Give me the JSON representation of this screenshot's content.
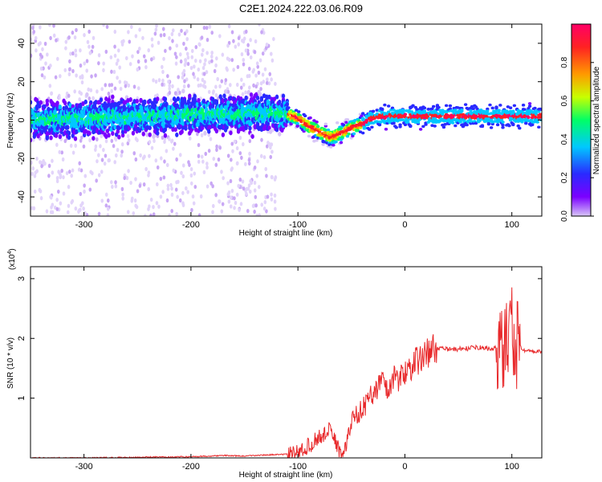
{
  "title": "C2E1.2024.222.03.06.R09",
  "chart_data": [
    {
      "type": "heatmap",
      "xlabel": "Height of straight line (km)",
      "ylabel": "Frequency (Hz)",
      "xlim": [
        -350,
        128
      ],
      "ylim": [
        -50,
        50
      ],
      "xticks": [
        -300,
        -200,
        -100,
        0,
        100
      ],
      "yticks": [
        -40,
        -20,
        0,
        20,
        40
      ],
      "colorbar": {
        "label": "Normalized spectral amplitude",
        "range": [
          0.0,
          1.0
        ],
        "ticks": [
          0.0,
          0.2,
          0.4,
          0.6,
          0.8
        ],
        "colormap": [
          "#d8c6f7",
          "#7b00ff",
          "#2a2aff",
          "#00c8ff",
          "#00ff66",
          "#c8ff00",
          "#ff9900",
          "#ff2222",
          "#ff0066"
        ]
      },
      "ridge": {
        "x": [
          -350,
          -300,
          -250,
          -200,
          -150,
          -125,
          -110,
          -100,
          -90,
          -80,
          -70,
          -60,
          -50,
          -40,
          -30,
          -20,
          0,
          50,
          100,
          128
        ],
        "y": [
          0,
          1,
          2,
          3,
          3,
          4,
          3,
          1,
          -3,
          -6,
          -9,
          -7,
          -4,
          -2,
          1,
          2,
          2,
          2,
          2,
          2
        ]
      }
    },
    {
      "type": "line",
      "xlabel": "Height of straight line (km)",
      "ylabel": "SNR (10 * v/v)",
      "yscale_label": "(x10",
      "yscale_exp": "4",
      "xlim": [
        -350,
        128
      ],
      "ylim": [
        0,
        3.2
      ],
      "xticks": [
        -300,
        -200,
        -100,
        0,
        100
      ],
      "yticks": [
        1,
        2,
        3
      ],
      "color": "#e8282a",
      "series": [
        {
          "x": [
            -350,
            -300,
            -250,
            -200,
            -170,
            -150,
            -130,
            -110,
            -100,
            -90,
            -80,
            -70,
            -65,
            -60,
            -55,
            -50,
            -45,
            -40,
            -35,
            -30,
            -25,
            -20,
            -15,
            -10,
            -5,
            0,
            10,
            20,
            30,
            35,
            50,
            70,
            80,
            90,
            95,
            100,
            103,
            105,
            110,
            128
          ],
          "y": [
            0.0,
            0.0,
            0.01,
            0.02,
            0.04,
            0.03,
            0.05,
            0.06,
            0.1,
            0.2,
            0.35,
            0.45,
            0.3,
            0.05,
            0.2,
            0.6,
            0.75,
            0.8,
            0.95,
            1.1,
            1.2,
            1.3,
            1.1,
            1.4,
            1.3,
            1.45,
            1.6,
            1.75,
            1.85,
            1.82,
            1.82,
            1.85,
            1.82,
            1.85,
            1.9,
            2.3,
            1.2,
            2.0,
            1.8,
            1.78
          ]
        }
      ]
    }
  ]
}
